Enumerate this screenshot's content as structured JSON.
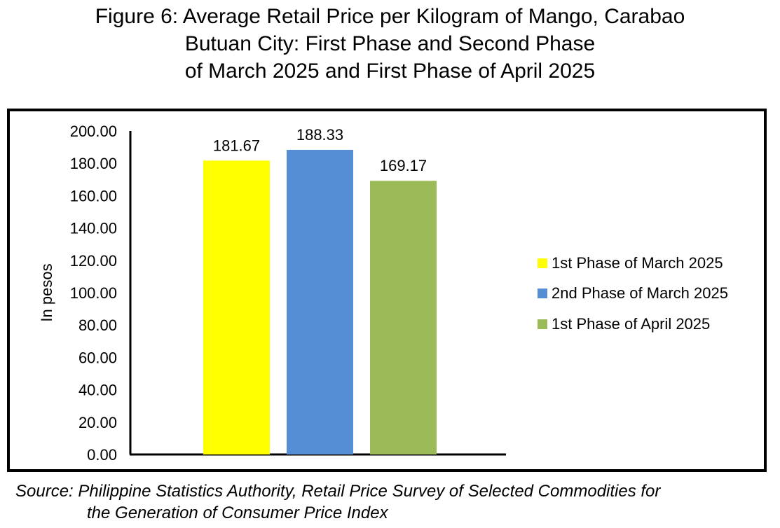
{
  "chart_data": {
    "type": "bar",
    "title_lines": [
      "Figure 6: Average Retail Price per Kilogram of Mango, Carabao",
      "Butuan City: First Phase and Second Phase",
      "of March 2025 and First Phase of April 2025"
    ],
    "ylabel": "In pesos",
    "ylim": [
      0,
      200
    ],
    "yticks": [
      "0.00",
      "20.00",
      "40.00",
      "60.00",
      "80.00",
      "100.00",
      "120.00",
      "140.00",
      "160.00",
      "180.00",
      "200.00"
    ],
    "grid": false,
    "legend_position": "right",
    "series": [
      {
        "name": "1st Phase of March 2025",
        "value": 181.67,
        "label": "181.67",
        "color": "#FFFF00"
      },
      {
        "name": "2nd Phase of March 2025",
        "value": 188.33,
        "label": "188.33",
        "color": "#558ED5"
      },
      {
        "name": "1st Phase of April 2025",
        "value": 169.17,
        "label": "169.17",
        "color": "#9BBB59"
      }
    ],
    "source_lines": [
      "Source: Philippine Statistics Authority, Retail Price Survey of Selected Commodities for",
      "the Generation of Consumer Price Index"
    ]
  }
}
